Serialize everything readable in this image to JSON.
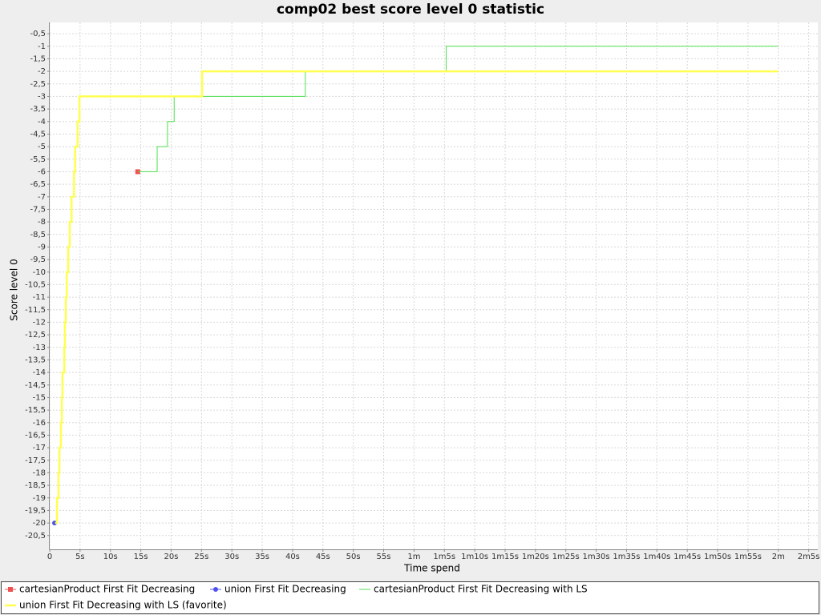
{
  "chart_data": {
    "type": "step",
    "title": "comp02 best score level 0 statistic",
    "x_label": "Time spend",
    "y_label": "Score level 0",
    "xlim": [
      0,
      126.5
    ],
    "ylim": [
      -21.05,
      -0.05
    ],
    "grid": true,
    "legend": "bottom",
    "xticks": [
      0,
      {
        "value": 5,
        "label": "5s"
      },
      {
        "value": 10,
        "label": "10s"
      },
      {
        "value": 15,
        "label": "15s"
      },
      {
        "value": 20,
        "label": "20s"
      },
      {
        "value": 25,
        "label": "25s"
      },
      {
        "value": 30,
        "label": "30s"
      },
      {
        "value": 35,
        "label": "35s"
      },
      {
        "value": 40,
        "label": "40s"
      },
      {
        "value": 45,
        "label": "45s"
      },
      {
        "value": 50,
        "label": "50s"
      },
      {
        "value": 55,
        "label": "55s"
      },
      {
        "value": 60,
        "label": "1m"
      },
      {
        "value": 65,
        "label": "1m5s"
      },
      {
        "value": 70,
        "label": "1m10s"
      },
      {
        "value": 75,
        "label": "1m15s"
      },
      {
        "value": 80,
        "label": "1m20s"
      },
      {
        "value": 85,
        "label": "1m25s"
      },
      {
        "value": 90,
        "label": "1m30s"
      },
      {
        "value": 95,
        "label": "1m35s"
      },
      {
        "value": 100,
        "label": "1m40s"
      },
      {
        "value": 105,
        "label": "1m45s"
      },
      {
        "value": 110,
        "label": "1m50s"
      },
      {
        "value": 115,
        "label": "1m55s"
      },
      {
        "value": 120,
        "label": "2m"
      },
      {
        "value": 125,
        "label": "2m5s"
      }
    ],
    "yticks": [
      {
        "value": -0.5,
        "label": "-0,5"
      },
      -1,
      {
        "value": -1.5,
        "label": "-1,5"
      },
      -2,
      {
        "value": -2.5,
        "label": "-2,5"
      },
      -3,
      {
        "value": -3.5,
        "label": "-3,5"
      },
      -4,
      {
        "value": -4.5,
        "label": "-4,5"
      },
      -5,
      {
        "value": -5.5,
        "label": "-5,5"
      },
      -6,
      {
        "value": -6.5,
        "label": "-6,5"
      },
      -7,
      {
        "value": -7.5,
        "label": "-7,5"
      },
      -8,
      {
        "value": -8.5,
        "label": "-8,5"
      },
      -9,
      {
        "value": -9.5,
        "label": "-9,5"
      },
      -10,
      {
        "value": -10.5,
        "label": "-10,5"
      },
      -11,
      {
        "value": -11.5,
        "label": "-11,5"
      },
      -12,
      {
        "value": -12.5,
        "label": "-12,5"
      },
      -13,
      {
        "value": -13.5,
        "label": "-13,5"
      },
      -14,
      {
        "value": -14.5,
        "label": "-14,5"
      },
      -15,
      {
        "value": -15.5,
        "label": "-15,5"
      },
      -16,
      {
        "value": -16.5,
        "label": "-16,5"
      },
      -17,
      {
        "value": -17.5,
        "label": "-17,5"
      },
      -18,
      {
        "value": -18.5,
        "label": "-18,5"
      },
      -19,
      {
        "value": -19.5,
        "label": "-19,5"
      },
      -20,
      {
        "value": -20.5,
        "label": "-20,5"
      }
    ],
    "series": [
      {
        "name": "cartesianProduct First Fit Decreasing",
        "color": "#f05050",
        "marker": "square",
        "x": [
          14.5
        ],
        "values": [
          -6
        ]
      },
      {
        "name": "union First Fit Decreasing",
        "color": "#5050f0",
        "marker": "circle",
        "x": [
          0.8
        ],
        "values": [
          -20
        ]
      },
      {
        "name": "cartesianProduct First Fit Decreasing with LS",
        "color": "#50e050",
        "width": 1,
        "x": [
          14.5,
          17.7,
          19.4,
          20.5,
          42.1,
          65.3,
          120
        ],
        "values": [
          -6,
          -5,
          -4,
          -3,
          -2,
          -1,
          -1
        ]
      },
      {
        "name": "union First Fit Decreasing with LS (favorite)",
        "color": "#ffff50",
        "width": 2.5,
        "x": [
          0.9,
          1.2,
          1.45,
          1.6,
          1.85,
          2.0,
          2.1,
          2.4,
          2.5,
          2.65,
          2.8,
          3.05,
          3.3,
          3.6,
          4.0,
          4.2,
          4.6,
          4.9,
          25.1,
          120
        ],
        "values": [
          -20,
          -19,
          -18,
          -17,
          -16,
          -15,
          -14,
          -13,
          -12,
          -11,
          -10,
          -9,
          -8,
          -7,
          -6,
          -5,
          -4,
          -3,
          -2,
          -2
        ]
      }
    ]
  }
}
